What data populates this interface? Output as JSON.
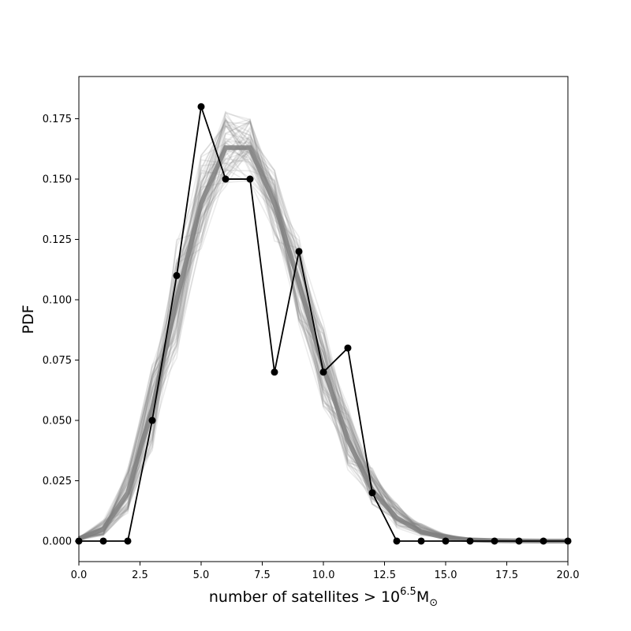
{
  "chart_data": {
    "type": "line",
    "title": "",
    "xlabel": "number of satellites > 10",
    "xlabel_exponent": "6.5",
    "xlabel_unit": "M",
    "xlabel_subscript": "⊙",
    "ylabel": "PDF",
    "xlim": [
      0,
      20
    ],
    "ylim": [
      -0.0085,
      0.1925
    ],
    "xticks": [
      "0.0",
      "2.5",
      "5.0",
      "7.5",
      "10.0",
      "12.5",
      "15.0",
      "17.5",
      "20.0"
    ],
    "yticks": [
      "0.000",
      "0.025",
      "0.050",
      "0.075",
      "0.100",
      "0.125",
      "0.150",
      "0.175"
    ],
    "grid": false,
    "colors": {
      "observed": "#000000",
      "model_band": "#808080"
    },
    "observed": {
      "x": [
        0,
        1,
        2,
        3,
        4,
        5,
        6,
        7,
        8,
        9,
        10,
        11,
        12,
        13,
        14,
        15,
        16,
        17,
        18,
        19,
        20
      ],
      "y": [
        0,
        0,
        0,
        0.05,
        0.11,
        0.18,
        0.15,
        0.15,
        0.07,
        0.12,
        0.07,
        0.08,
        0.02,
        0,
        0,
        0,
        0,
        0,
        0,
        0,
        0
      ]
    },
    "model_band": {
      "x": [
        0,
        1,
        2,
        3,
        4,
        5,
        6,
        7,
        8,
        9,
        10,
        11,
        12,
        13,
        14,
        15,
        16,
        17,
        18,
        19,
        20
      ],
      "y_center": [
        0.001,
        0.005,
        0.02,
        0.055,
        0.1,
        0.14,
        0.163,
        0.163,
        0.14,
        0.107,
        0.072,
        0.042,
        0.021,
        0.0095,
        0.0038,
        0.0014,
        0.0005,
        0.0002,
        0.0001,
        0.0,
        0.0
      ],
      "y_low": [
        0.0,
        0.002,
        0.011,
        0.035,
        0.075,
        0.118,
        0.145,
        0.147,
        0.122,
        0.088,
        0.054,
        0.029,
        0.013,
        0.005,
        0.0015,
        0.0005,
        0.0001,
        0.0,
        0.0,
        0.0,
        0.0
      ],
      "y_high": [
        0.002,
        0.009,
        0.031,
        0.076,
        0.125,
        0.162,
        0.182,
        0.177,
        0.158,
        0.127,
        0.091,
        0.057,
        0.031,
        0.016,
        0.0075,
        0.003,
        0.0012,
        0.0005,
        0.0002,
        0.0001,
        0.0
      ],
      "n_samples": 60
    }
  }
}
